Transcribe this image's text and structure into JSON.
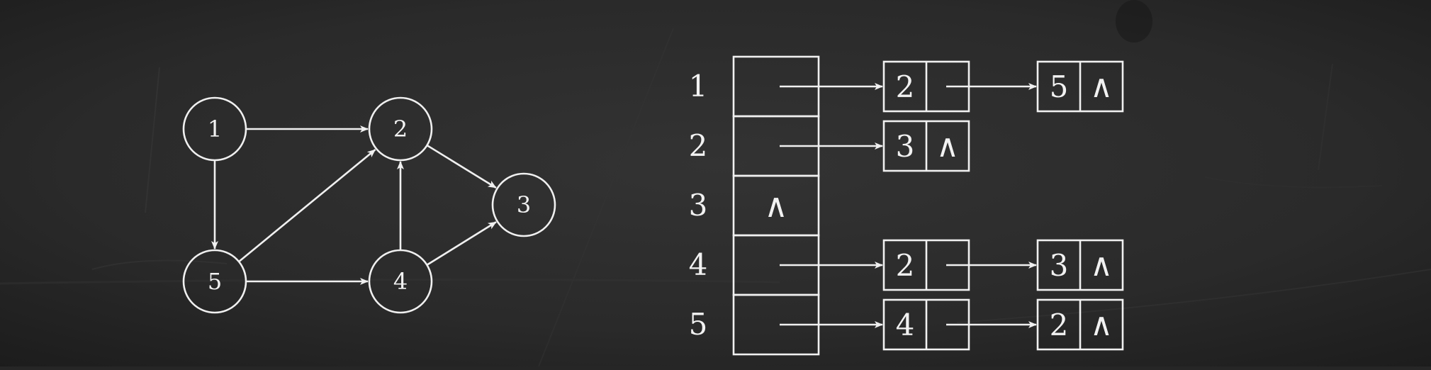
{
  "graph": {
    "nodes": [
      {
        "id": "1",
        "label": "1"
      },
      {
        "id": "2",
        "label": "2"
      },
      {
        "id": "3",
        "label": "3"
      },
      {
        "id": "4",
        "label": "4"
      },
      {
        "id": "5",
        "label": "5"
      }
    ],
    "edges": [
      {
        "from": "1",
        "to": "2"
      },
      {
        "from": "1",
        "to": "5"
      },
      {
        "from": "5",
        "to": "2"
      },
      {
        "from": "5",
        "to": "4"
      },
      {
        "from": "4",
        "to": "2"
      },
      {
        "from": "2",
        "to": "3"
      },
      {
        "from": "4",
        "to": "3"
      }
    ]
  },
  "adjacency_list": {
    "null_symbol": "∧",
    "rows": [
      {
        "index": "1",
        "nodes": [
          "2",
          "5"
        ],
        "empty": false
      },
      {
        "index": "2",
        "nodes": [
          "3"
        ],
        "empty": false
      },
      {
        "index": "3",
        "nodes": [],
        "empty": true
      },
      {
        "index": "4",
        "nodes": [
          "2",
          "3"
        ],
        "empty": false
      },
      {
        "index": "5",
        "nodes": [
          "4",
          "2"
        ],
        "empty": false
      }
    ]
  },
  "colors": {
    "background": "#262626",
    "chalk": "#f0f0f0"
  }
}
